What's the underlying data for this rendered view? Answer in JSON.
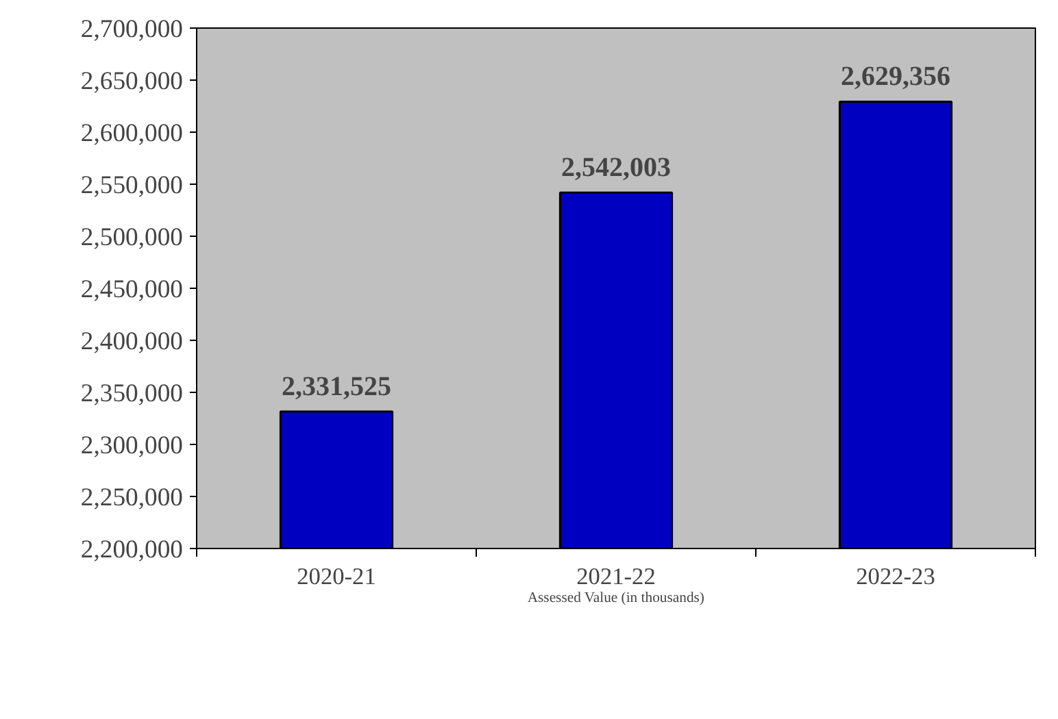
{
  "chart_data": {
    "type": "bar",
    "annotations": [
      "Assessed Value (in thousands)"
    ],
    "value_labels": [
      "2,331,525",
      "2,542,003",
      "2,629,356"
    ],
    "categories": [
      "2020-21",
      "2021-22",
      "2022-23"
    ],
    "values": [
      2331525,
      2542003,
      2629356
    ],
    "color": "#0000c0",
    "ylim": [
      2200000,
      2700000
    ],
    "yticks": [
      {
        "value": 2200000,
        "label": "2,200,000"
      },
      {
        "value": 2250000,
        "label": "2,250,000"
      },
      {
        "value": 2300000,
        "label": "2,300,000"
      },
      {
        "value": 2350000,
        "label": "2,350,000"
      },
      {
        "value": 2400000,
        "label": "2,400,000"
      },
      {
        "value": 2450000,
        "label": "2,450,000"
      },
      {
        "value": 2500000,
        "label": "2,500,000"
      },
      {
        "value": 2550000,
        "label": "2,550,000"
      },
      {
        "value": 2600000,
        "label": "2,600,000"
      },
      {
        "value": 2650000,
        "label": "2,650,000"
      },
      {
        "value": 2700000,
        "label": "2,700,000"
      }
    ],
    "grid": false
  }
}
